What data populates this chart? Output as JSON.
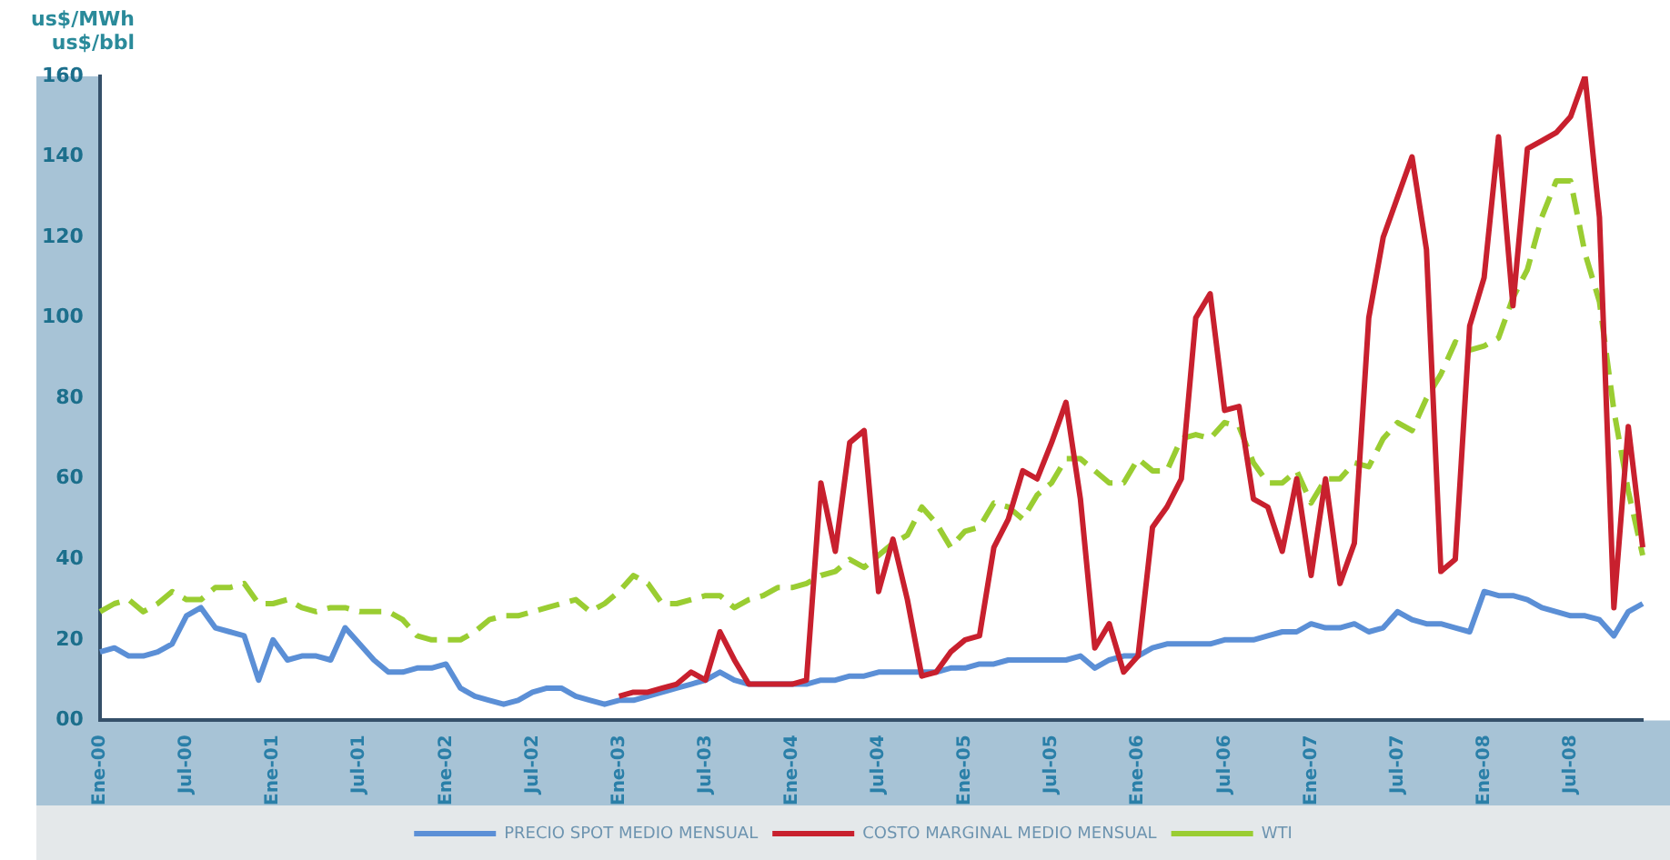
{
  "chart_data": {
    "type": "line",
    "ylabel": "us$/MWh\nus$/bbl",
    "categories": [
      "Ene-00",
      null,
      null,
      null,
      null,
      null,
      "Jul-00",
      null,
      null,
      null,
      null,
      null,
      "Ene-01",
      null,
      null,
      null,
      null,
      null,
      "Jul-01",
      null,
      null,
      null,
      null,
      null,
      "Ene-02",
      null,
      null,
      null,
      null,
      null,
      "Jul-02",
      null,
      null,
      null,
      null,
      null,
      "Ene-03",
      null,
      null,
      null,
      null,
      null,
      "Jul-03",
      null,
      null,
      null,
      null,
      null,
      "Ene-04",
      null,
      null,
      null,
      null,
      null,
      "Jul-04",
      null,
      null,
      null,
      null,
      null,
      "Ene-05",
      null,
      null,
      null,
      null,
      null,
      "Jul-05",
      null,
      null,
      null,
      null,
      null,
      "Ene-06",
      null,
      null,
      null,
      null,
      null,
      "Jul-06",
      null,
      null,
      null,
      null,
      null,
      "Ene-07",
      null,
      null,
      null,
      null,
      null,
      "Jul-07",
      null,
      null,
      null,
      null,
      null,
      "Ene-08",
      null,
      null,
      null,
      null,
      null,
      "Jul-08",
      null,
      null,
      null,
      null,
      null
    ],
    "series": [
      {
        "name": "PRECIO SPOT MEDIO MENSUAL",
        "color": "#5b8fd6",
        "values": [
          17,
          18,
          16,
          16,
          17,
          19,
          26,
          28,
          23,
          22,
          21,
          10,
          20,
          15,
          16,
          16,
          15,
          23,
          19,
          15,
          12,
          12,
          13,
          13,
          14,
          8,
          6,
          5,
          4,
          5,
          7,
          8,
          8,
          6,
          5,
          4,
          5,
          5,
          6,
          7,
          8,
          9,
          10,
          12,
          10,
          9,
          9,
          9,
          9,
          9,
          10,
          10,
          11,
          11,
          12,
          12,
          12,
          12,
          12,
          13,
          13,
          14,
          14,
          15,
          15,
          15,
          15,
          15,
          16,
          13,
          15,
          16,
          16,
          18,
          19,
          19,
          19,
          19,
          20,
          20,
          20,
          21,
          22,
          22,
          24,
          23,
          23,
          24,
          22,
          23,
          27,
          25,
          24,
          24,
          23,
          22,
          32,
          31,
          31,
          30,
          28,
          27,
          26,
          26,
          25,
          21,
          27,
          29
        ]
      },
      {
        "name": "COSTO MARGINAL MEDIO MENSUAL",
        "color": "#c8202e",
        "values": [
          null,
          null,
          null,
          null,
          null,
          null,
          null,
          null,
          null,
          null,
          null,
          null,
          null,
          null,
          null,
          null,
          null,
          null,
          null,
          null,
          null,
          null,
          null,
          null,
          null,
          null,
          null,
          null,
          null,
          null,
          null,
          null,
          null,
          null,
          null,
          null,
          6,
          7,
          7,
          8,
          9,
          12,
          10,
          22,
          15,
          9,
          9,
          9,
          9,
          10,
          59,
          42,
          69,
          72,
          32,
          45,
          30,
          11,
          12,
          17,
          20,
          21,
          43,
          50,
          62,
          60,
          69,
          79,
          55,
          18,
          24,
          12,
          16,
          48,
          53,
          60,
          100,
          106,
          77,
          78,
          55,
          53,
          42,
          60,
          36,
          60,
          34,
          44,
          100,
          120,
          130,
          140,
          117,
          37,
          40,
          98,
          110,
          145,
          103,
          142,
          144,
          146,
          150,
          160,
          125,
          28,
          73,
          43
        ]
      },
      {
        "name": "WTI",
        "color": "#9acd32",
        "line_style": "dashed",
        "values": [
          27,
          29,
          30,
          27,
          29,
          32,
          30,
          30,
          33,
          33,
          34,
          29,
          29,
          30,
          28,
          27,
          28,
          28,
          27,
          27,
          27,
          25,
          21,
          20,
          20,
          20,
          22,
          25,
          26,
          26,
          27,
          28,
          29,
          30,
          27,
          29,
          32,
          36,
          34,
          29,
          29,
          30,
          31,
          31,
          28,
          30,
          31,
          33,
          33,
          34,
          36,
          37,
          40,
          38,
          41,
          44,
          46,
          53,
          49,
          43,
          47,
          48,
          54,
          53,
          50,
          56,
          59,
          65,
          65,
          62,
          59,
          59,
          65,
          62,
          62,
          70,
          71,
          70,
          74,
          73,
          64,
          59,
          59,
          62,
          54,
          60,
          60,
          64,
          63,
          70,
          74,
          72,
          80,
          86,
          94,
          92,
          93,
          95,
          105,
          112,
          125,
          134,
          134,
          116,
          104,
          77,
          57,
          41
        ]
      }
    ],
    "ylim": [
      0,
      160
    ],
    "yticks": [
      {
        "value": 0,
        "label": "00"
      },
      20,
      40,
      60,
      80,
      100,
      120,
      140,
      160
    ],
    "grid": false,
    "legend": "bottom",
    "marker": "none",
    "line_style": "solid"
  }
}
